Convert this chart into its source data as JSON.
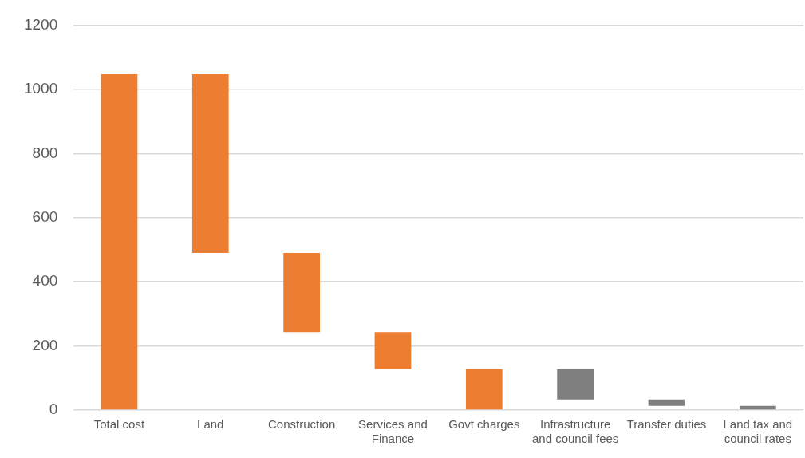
{
  "chart_data": {
    "type": "bar",
    "categories": [
      "Total cost",
      "Land",
      "Construction",
      "Services and Finance",
      "Govt charges",
      "Infrastructure and council fees",
      "Transfer duties",
      "Land tax and council rates"
    ],
    "values": [
      1047,
      557,
      247,
      115,
      128,
      95,
      20,
      13
    ],
    "base": [
      0,
      490,
      243,
      128,
      0,
      33,
      13,
      0
    ],
    "colors": [
      "#ed7d31",
      "#ed7d31",
      "#ed7d31",
      "#ed7d31",
      "#ed7d31",
      "#7f7f7f",
      "#7f7f7f",
      "#7f7f7f"
    ],
    "ylim": [
      0,
      1200
    ],
    "yticks": [
      0,
      200,
      400,
      600,
      800,
      1000,
      1200
    ],
    "grid": "y",
    "legend": false
  }
}
